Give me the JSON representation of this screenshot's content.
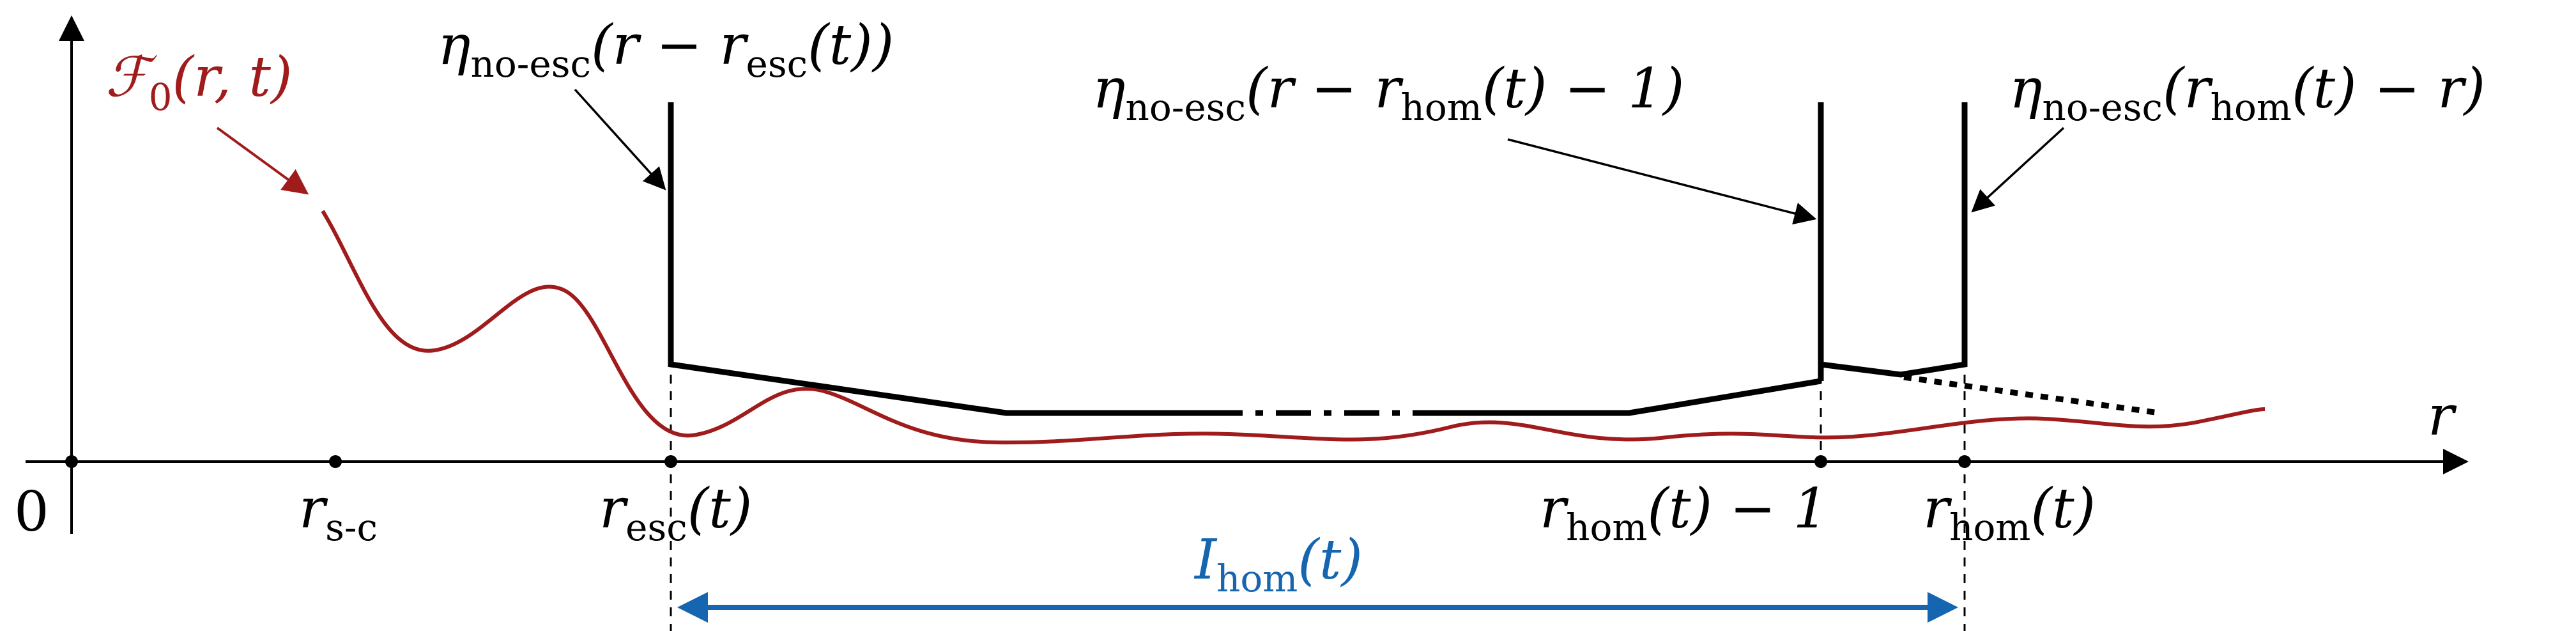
{
  "labels": {
    "origin": "0",
    "r_axis": "r",
    "f0_pre": "ℱ",
    "f0_sub": "0",
    "f0_args": "(r, t)",
    "rsc_main": "r",
    "rsc_sub": "s-c",
    "resc_main": "r",
    "resc_sub": "esc",
    "resc_args": "(t)",
    "rhom1_main": "r",
    "rhom1_sub": "hom",
    "rhom1_args": "(t) − 1",
    "rhom_main": "r",
    "rhom_sub": "hom",
    "rhom_args": "(t)",
    "ihom_main": "I",
    "ihom_sub": "hom",
    "ihom_args": "(t)",
    "eta1_main": "η",
    "eta1_sub": "no-esc",
    "eta1_args": "(r − r",
    "eta1_sub2": "esc",
    "eta1_tail": "(t))",
    "eta2_main": "η",
    "eta2_sub": "no-esc",
    "eta2_args": "(r − r",
    "eta2_sub2": "hom",
    "eta2_tail": "(t) − 1)",
    "eta3_main": "η",
    "eta3_sub": "no-esc",
    "eta3_args": "(r",
    "eta3_sub2": "hom",
    "eta3_tail": "(t) − r)"
  },
  "colors": {
    "axis": "#000000",
    "curve": "#a01c1c",
    "cutoff": "#000000",
    "interval": "#1565b0"
  }
}
